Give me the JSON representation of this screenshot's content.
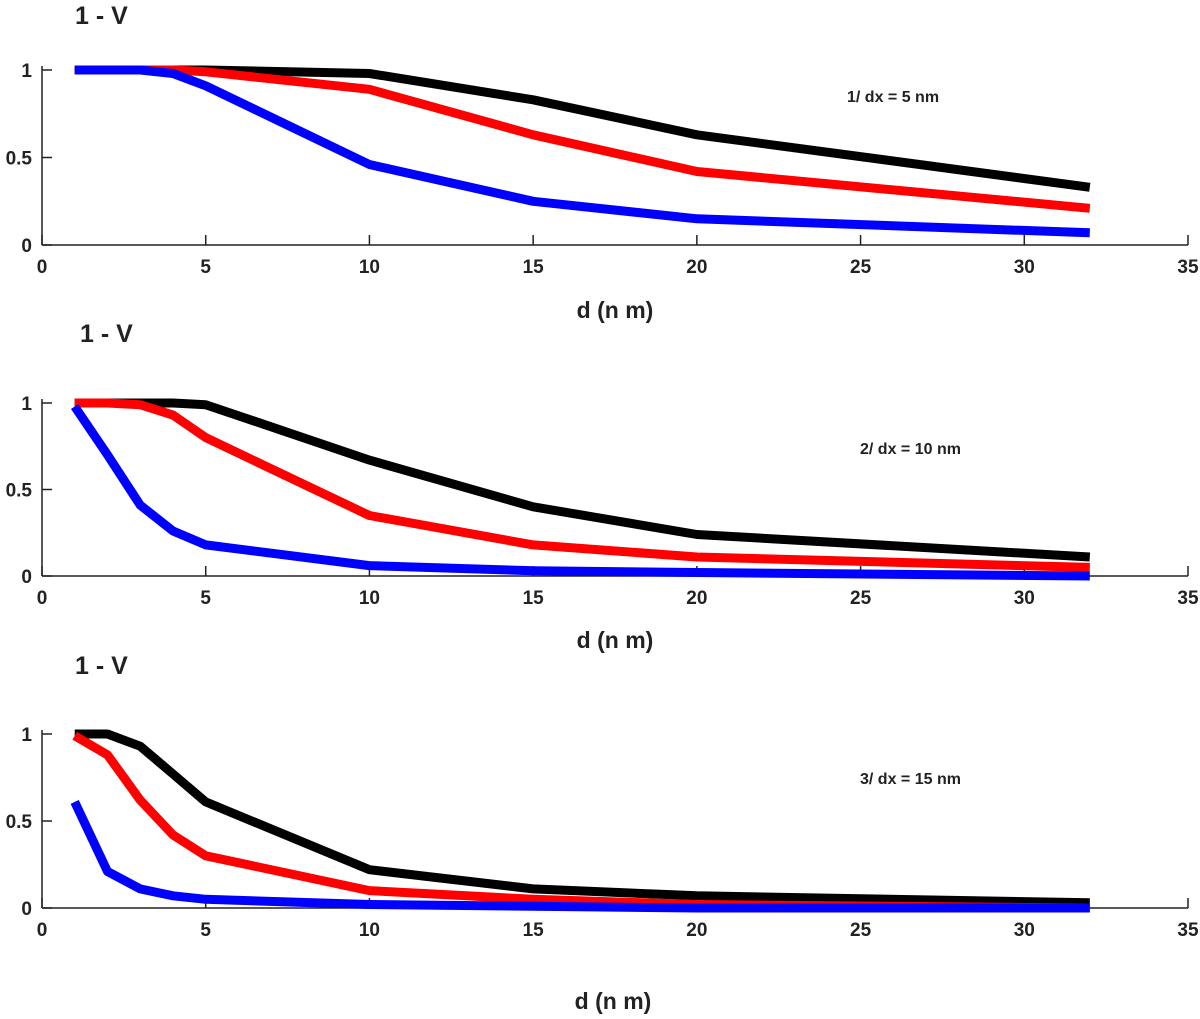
{
  "chart_data": [
    {
      "type": "line",
      "ylabel": "1 - V",
      "xlabel": "d (n m)",
      "annotation": "1/  dx = 5 nm",
      "xlim": [
        0,
        35
      ],
      "ylim": [
        0,
        1
      ],
      "xticks": [
        "0",
        "5",
        "10",
        "15",
        "20",
        "25",
        "30",
        "35"
      ],
      "yticks": [
        "0",
        "0.5",
        "1"
      ],
      "grid": false,
      "series": [
        {
          "color": "#000000",
          "x": [
            1,
            2,
            3,
            4,
            5,
            10,
            15,
            20,
            32
          ],
          "y": [
            1.0,
            1.0,
            1.0,
            1.0,
            1.0,
            0.98,
            0.83,
            0.63,
            0.33
          ]
        },
        {
          "color": "#ff0000",
          "x": [
            1,
            2,
            3,
            4,
            5,
            10,
            15,
            20,
            32
          ],
          "y": [
            1.0,
            1.0,
            1.0,
            1.0,
            0.99,
            0.89,
            0.63,
            0.42,
            0.21
          ]
        },
        {
          "color": "#0000ff",
          "x": [
            1,
            2,
            3,
            4,
            5,
            10,
            15,
            20,
            32
          ],
          "y": [
            1.0,
            1.0,
            1.0,
            0.98,
            0.91,
            0.46,
            0.25,
            0.15,
            0.07
          ]
        }
      ]
    },
    {
      "type": "line",
      "ylabel": "1 - V",
      "xlabel": "d (n m)",
      "annotation": "2/ dx = 10 nm",
      "xlim": [
        0,
        35
      ],
      "ylim": [
        0,
        1
      ],
      "xticks": [
        "0",
        "5",
        "10",
        "15",
        "20",
        "25",
        "30",
        "35"
      ],
      "yticks": [
        "0",
        "0.5",
        "1"
      ],
      "grid": false,
      "series": [
        {
          "color": "#000000",
          "x": [
            1,
            2,
            3,
            4,
            5,
            10,
            15,
            20,
            32
          ],
          "y": [
            1.0,
            1.0,
            1.0,
            1.0,
            0.99,
            0.67,
            0.4,
            0.24,
            0.11
          ]
        },
        {
          "color": "#ff0000",
          "x": [
            1,
            2,
            3,
            4,
            5,
            10,
            15,
            20,
            32
          ],
          "y": [
            1.0,
            1.0,
            0.99,
            0.93,
            0.8,
            0.35,
            0.18,
            0.11,
            0.05
          ]
        },
        {
          "color": "#0000ff",
          "x": [
            1,
            2,
            3,
            4,
            5,
            10,
            15,
            20,
            32
          ],
          "y": [
            0.98,
            0.7,
            0.41,
            0.26,
            0.18,
            0.06,
            0.03,
            0.02,
            0.0
          ]
        }
      ]
    },
    {
      "type": "line",
      "ylabel": "1 - V",
      "xlabel": "d (n m)",
      "annotation": "3/ dx = 15 nm",
      "xlim": [
        0,
        35
      ],
      "ylim": [
        0,
        1
      ],
      "xticks": [
        "0",
        "5",
        "10",
        "15",
        "20",
        "25",
        "30",
        "35"
      ],
      "yticks": [
        "0",
        "0.5",
        "1"
      ],
      "grid": false,
      "series": [
        {
          "color": "#000000",
          "x": [
            1,
            2,
            3,
            4,
            5,
            10,
            15,
            20,
            32
          ],
          "y": [
            1.0,
            1.0,
            0.93,
            0.77,
            0.61,
            0.22,
            0.11,
            0.07,
            0.03
          ]
        },
        {
          "color": "#ff0000",
          "x": [
            1,
            2,
            3,
            4,
            5,
            10,
            15,
            20,
            32
          ],
          "y": [
            0.99,
            0.88,
            0.62,
            0.42,
            0.3,
            0.1,
            0.05,
            0.02,
            0.0
          ]
        },
        {
          "color": "#0000ff",
          "x": [
            1,
            2,
            3,
            4,
            5,
            10,
            15,
            20,
            32
          ],
          "y": [
            0.61,
            0.21,
            0.11,
            0.07,
            0.05,
            0.02,
            0.01,
            0.0,
            0.0
          ]
        }
      ]
    }
  ]
}
